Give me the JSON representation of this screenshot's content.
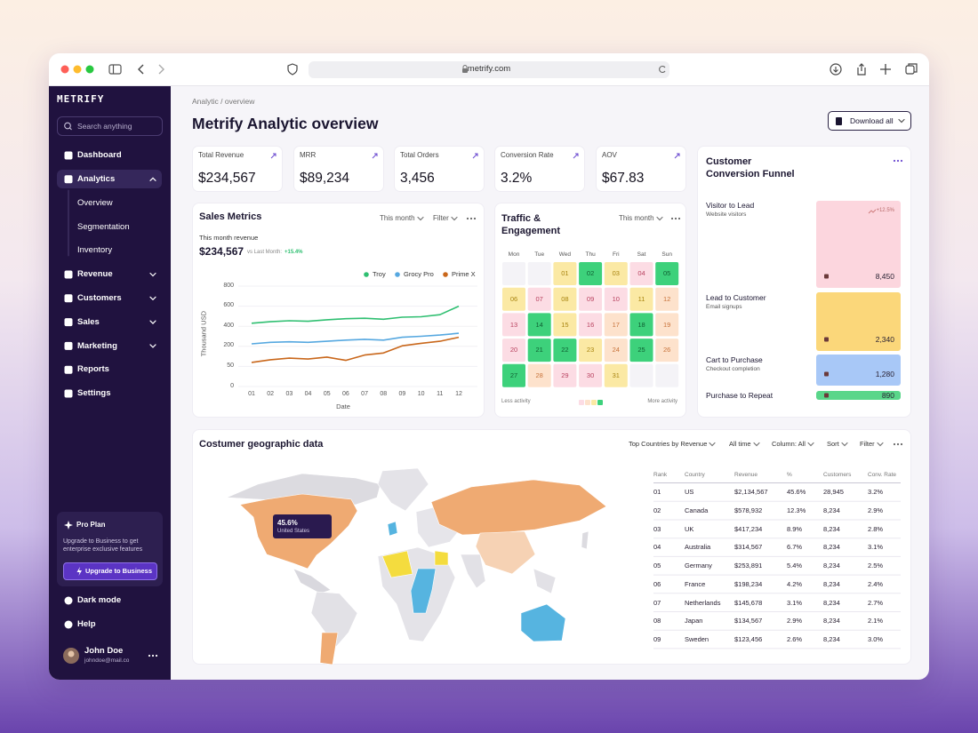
{
  "browser": {
    "url": "metrify.com"
  },
  "sidebar": {
    "logo": "METRIFY",
    "search_placeholder": "Search anything",
    "nav": [
      {
        "label": "Dashboard"
      },
      {
        "label": "Analytics",
        "active": true,
        "expandable": true,
        "expanded": true,
        "children": [
          "Overview",
          "Segmentation",
          "Inventory"
        ]
      },
      {
        "label": "Revenue",
        "expandable": true
      },
      {
        "label": "Customers",
        "expandable": true
      },
      {
        "label": "Sales",
        "expandable": true
      },
      {
        "label": "Marketing",
        "expandable": true
      },
      {
        "label": "Reports"
      },
      {
        "label": "Settings"
      }
    ],
    "promo": {
      "title": "Pro Plan",
      "text": "Upgrade to Business to get enterprise exclusive features",
      "button": "Upgrade to Business"
    },
    "footer_links": [
      "Dark mode",
      "Help"
    ],
    "user": {
      "name": "John Doe",
      "email": "johndoe@mail.co"
    }
  },
  "header": {
    "breadcrumb": "Analytic / overview",
    "title": "Metrify Analytic overview",
    "download_button": "Download all"
  },
  "kpis": [
    {
      "label": "Total Revenue",
      "value": "$234,567"
    },
    {
      "label": "MRR",
      "value": "$89,234"
    },
    {
      "label": "Total Orders",
      "value": "3,456"
    },
    {
      "label": "Conversion Rate",
      "value": "3.2%"
    },
    {
      "label": "AOV",
      "value": "$67.83"
    }
  ],
  "sales_metrics": {
    "title": "Sales Metrics",
    "period": "This month",
    "filter": "Filter",
    "revenue_label": "This month revenue",
    "revenue": "$234,567",
    "comparison_label": "vs Last Month:",
    "comparison": "+15.4%",
    "chart": {
      "type": "line",
      "x_label": "Date",
      "y_label": "Thousand USD",
      "categories": [
        "01",
        "02",
        "03",
        "04",
        "05",
        "06",
        "07",
        "08",
        "09",
        "10",
        "11",
        "12"
      ],
      "ylim": [
        0,
        800
      ],
      "yticks": [
        0,
        50,
        200,
        400,
        600,
        800
      ],
      "series": [
        {
          "name": "Troy",
          "color": "#2fbf71",
          "values": [
            430,
            445,
            455,
            450,
            465,
            475,
            480,
            470,
            490,
            495,
            515,
            600
          ]
        },
        {
          "name": "Grocy Pro",
          "color": "#56a8e0",
          "values": [
            225,
            240,
            245,
            240,
            250,
            262,
            270,
            262,
            290,
            300,
            312,
            330
          ]
        },
        {
          "name": "Prime X",
          "color": "#c9671b",
          "values": [
            80,
            100,
            112,
            105,
            120,
            95,
            135,
            150,
            205,
            230,
            250,
            290
          ]
        }
      ]
    }
  },
  "traffic": {
    "title": "Traffic & Engagement",
    "period": "This month",
    "weekdays": [
      "Mon",
      "Tue",
      "Wed",
      "Thu",
      "Fri",
      "Sat",
      "Sun"
    ],
    "cells": [
      null,
      null,
      {
        "label": "01",
        "level": 3
      },
      {
        "label": "02",
        "level": 4
      },
      {
        "label": "03",
        "level": 3
      },
      {
        "label": "04",
        "level": 1
      },
      {
        "label": "05",
        "level": 4
      },
      {
        "label": "06",
        "level": 3
      },
      {
        "label": "07",
        "level": 1
      },
      {
        "label": "08",
        "level": 3
      },
      {
        "label": "09",
        "level": 1
      },
      {
        "label": "10",
        "level": 1
      },
      {
        "label": "11",
        "level": 3
      },
      {
        "label": "12",
        "level": 2
      },
      {
        "label": "13",
        "level": 1
      },
      {
        "label": "14",
        "level": 4
      },
      {
        "label": "15",
        "level": 3
      },
      {
        "label": "16",
        "level": 1
      },
      {
        "label": "17",
        "level": 2
      },
      {
        "label": "18",
        "level": 4
      },
      {
        "label": "19",
        "level": 2
      },
      {
        "label": "20",
        "level": 1
      },
      {
        "label": "21",
        "level": 4
      },
      {
        "label": "22",
        "level": 4
      },
      {
        "label": "23",
        "level": 3
      },
      {
        "label": "24",
        "level": 2
      },
      {
        "label": "25",
        "level": 4
      },
      {
        "label": "26",
        "level": 2
      },
      {
        "label": "27",
        "level": 4
      },
      {
        "label": "28",
        "level": 2
      },
      {
        "label": "29",
        "level": 1
      },
      {
        "label": "30",
        "level": 1
      },
      {
        "label": "31",
        "level": 3
      },
      null,
      null
    ],
    "level_colors": [
      "#fcdce4",
      "#fde2cc",
      "#fbe9a4",
      "#3dd17b"
    ],
    "level_text_colors": [
      "#b8405e",
      "#c8733a",
      "#a8840f",
      "#0f5f32"
    ],
    "legend_low": "Less activity",
    "legend_high": "More activity"
  },
  "funnel": {
    "title": "Customer Conversion Funnel",
    "stages": [
      {
        "label": "Visitor to Lead",
        "sublabel": "Website visitors",
        "value": "8,450",
        "change": "+12.5%",
        "color": "#fcd6de"
      },
      {
        "label": "Lead to Customer",
        "sublabel": "Email signups",
        "value": "2,340",
        "color": "#fbd77a"
      },
      {
        "label": "Cart to Purchase",
        "sublabel": "Checkout completion",
        "value": "1,280",
        "color": "#a8c8f7"
      },
      {
        "label": "Purchase to Repeat",
        "value": "890",
        "color": "#5ad68a"
      }
    ]
  },
  "geo": {
    "title": "Costumer geographic data",
    "controls": [
      "Top Countries by Revenue",
      "All time",
      "Column: All",
      "Sort",
      "Filter"
    ],
    "tooltip": {
      "value": "45.6%",
      "label": "United States"
    },
    "table": {
      "columns": [
        "Rank",
        "Country",
        "Revenue",
        "%",
        "Customers",
        "Conv. Rate"
      ],
      "rows": [
        [
          "01",
          "US",
          "$2,134,567",
          "45.6%",
          "28,945",
          "3.2%"
        ],
        [
          "02",
          "Canada",
          "$578,932",
          "12.3%",
          "8,234",
          "2.9%"
        ],
        [
          "03",
          "UK",
          "$417,234",
          "8.9%",
          "8,234",
          "2.8%"
        ],
        [
          "04",
          "Australia",
          "$314,567",
          "6.7%",
          "8,234",
          "3.1%"
        ],
        [
          "05",
          "Germany",
          "$253,891",
          "5.4%",
          "8,234",
          "2.5%"
        ],
        [
          "06",
          "France",
          "$198,234",
          "4.2%",
          "8,234",
          "2.4%"
        ],
        [
          "07",
          "Netherlands",
          "$145,678",
          "3.1%",
          "8,234",
          "2.7%"
        ],
        [
          "08",
          "Japan",
          "$134,567",
          "2.9%",
          "8,234",
          "2.1%"
        ],
        [
          "09",
          "Sweden",
          "$123,456",
          "2.6%",
          "8,234",
          "3.0%"
        ]
      ]
    }
  }
}
